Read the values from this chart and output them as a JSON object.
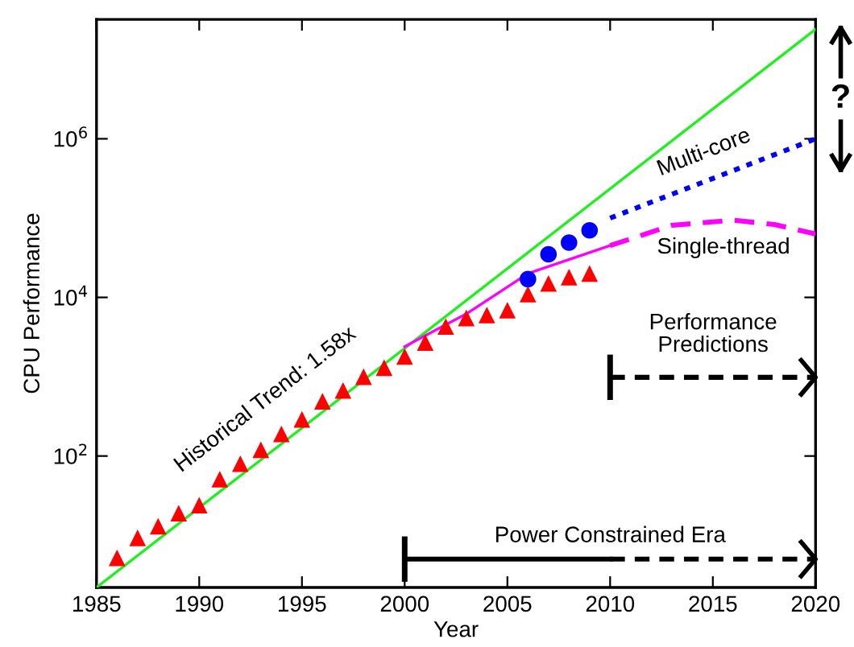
{
  "chart_data": {
    "type": "line",
    "xlabel": "Year",
    "ylabel": "CPU Performance",
    "log": "y",
    "xlim": [
      1985,
      2020
    ],
    "xticks": [
      1985,
      1990,
      1995,
      2000,
      2005,
      2010,
      2015,
      2020
    ],
    "ylim": [
      2.2,
      32000000
    ],
    "yticks": [
      {
        "value": 100,
        "label": "10$^{2}$"
      },
      {
        "value": 10000,
        "label": "10$^{4}$"
      },
      {
        "value": 1000000,
        "label": "10$^{6}$"
      }
    ],
    "grid": false,
    "legend": false,
    "series": [
      {
        "color": "#22ee22",
        "line_style": "solid",
        "marker": "none",
        "x": [
          1985,
          2020
        ],
        "values": [
          2.2,
          24000000
        ]
      },
      {
        "type": "scatter",
        "color": "#ff0000",
        "marker": "triangle",
        "x": [
          1986,
          1987,
          1988,
          1989,
          1990,
          1991,
          1992,
          1993,
          1994,
          1995,
          1996,
          1997,
          1998,
          1999,
          2000,
          2001,
          2002,
          2003,
          2004,
          2005,
          2006,
          2007,
          2008,
          2009
        ],
        "values": [
          5.2,
          9.3,
          13,
          19,
          24,
          51,
          80,
          120,
          190,
          290,
          490,
          670,
          1000,
          1300,
          1800,
          2700,
          4300,
          5500,
          6000,
          6900,
          11000,
          15000,
          18000,
          20000
        ]
      },
      {
        "type": "scatter",
        "color": "#0000ff",
        "marker": "circle",
        "x": [
          2006,
          2007,
          2008,
          2009
        ],
        "values": [
          17000,
          35000,
          49000,
          70000
        ]
      },
      {
        "color": "#ff00ff",
        "line_style": "solid",
        "marker": "none",
        "x": [
          2000,
          2003,
          2006,
          2010
        ],
        "values": [
          2400,
          6200,
          20000,
          45000
        ]
      },
      {
        "color": "#ff00ff",
        "line_style": "dashed",
        "marker": "none",
        "x": [
          2010,
          2013,
          2016,
          2018,
          2020
        ],
        "values": [
          45000,
          81000,
          94000,
          83000,
          63000
        ]
      },
      {
        "color": "#0000ff",
        "line_style": "dotted",
        "marker": "none",
        "x": [
          2010,
          2020
        ],
        "values": [
          100000,
          1000000
        ]
      }
    ],
    "annotations": [
      "Historical Trend: 1.58x",
      "Multi-core",
      "Single-thread",
      "Performance\nPredictions",
      "Power Constrained Era",
      "?"
    ]
  }
}
